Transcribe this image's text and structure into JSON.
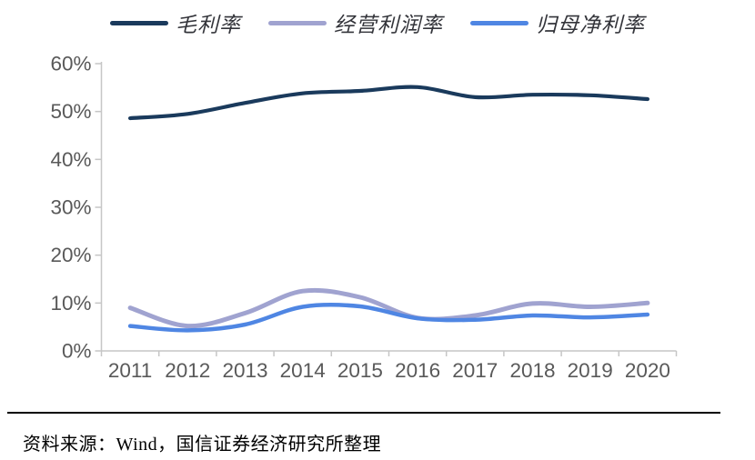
{
  "chart_data": {
    "type": "line",
    "title": "",
    "xlabel": "",
    "ylabel": "",
    "categories": [
      "2011",
      "2012",
      "2013",
      "2014",
      "2015",
      "2016",
      "2017",
      "2018",
      "2019",
      "2020"
    ],
    "series": [
      {
        "name": "毛利率",
        "color": "#1a3a5c",
        "stroke_width": 4.2,
        "values": [
          48.6,
          49.5,
          51.8,
          53.8,
          54.3,
          55.1,
          53.0,
          53.5,
          53.4,
          52.6
        ]
      },
      {
        "name": "经营利润率",
        "color": "#a0a3d0",
        "stroke_width": 5,
        "values": [
          9.0,
          5.2,
          7.9,
          12.5,
          11.2,
          6.9,
          7.4,
          9.9,
          9.2,
          10.0
        ]
      },
      {
        "name": "归母净利率",
        "color": "#4f86e3",
        "stroke_width": 4.5,
        "values": [
          5.2,
          4.3,
          5.5,
          9.2,
          9.3,
          6.8,
          6.5,
          7.4,
          7.0,
          7.6
        ]
      }
    ],
    "ylim": [
      0,
      60
    ],
    "y_tick_step": 10,
    "y_tick_suffix": "%",
    "y_tick_labels": [
      "0%",
      "10%",
      "20%",
      "30%",
      "40%",
      "50%",
      "60%"
    ],
    "grid": false,
    "smooth": true,
    "legend_position": "top",
    "axis_color": "#c6c6c6",
    "tick_label_color": "#595959"
  },
  "footer": {
    "source_text": "资料来源：Wind，国信证券经济研究所整理"
  }
}
